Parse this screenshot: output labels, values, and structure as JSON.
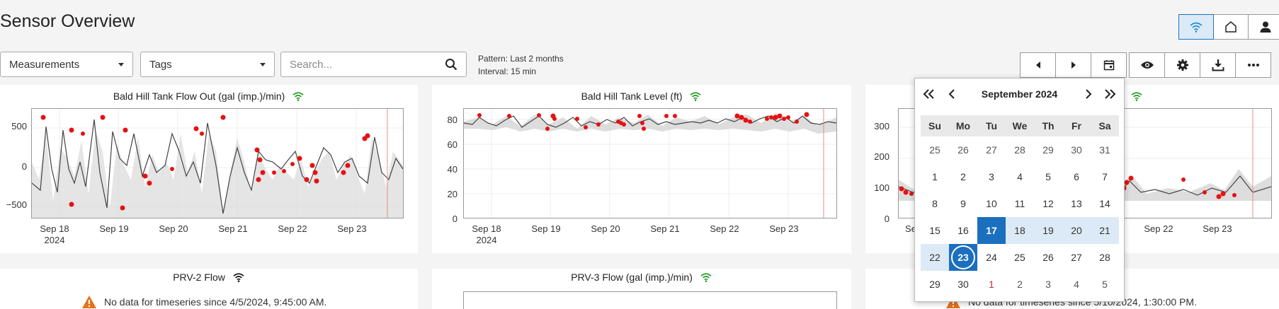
{
  "page_title": "Sensor Overview",
  "top_buttons": [
    {
      "name": "sensor",
      "icon": "wifi-icon",
      "active": true
    },
    {
      "name": "home",
      "icon": "home-icon",
      "active": false
    },
    {
      "name": "user",
      "icon": "user-icon",
      "active": false
    }
  ],
  "filters": {
    "measurements_label": "Measurements",
    "tags_label": "Tags",
    "search_placeholder": "Search..."
  },
  "pattern": {
    "pattern_text": "Pattern: Last 2 months",
    "interval_text": "Interval: 15 min"
  },
  "nav_buttons": [
    "chevron-left-icon",
    "chevron-right-icon",
    "calendar-icon"
  ],
  "tool_buttons": [
    "eye-icon",
    "gear-icon",
    "download-icon",
    "more-icon"
  ],
  "panels": [
    {
      "title": "Bald Hill Tank Flow Out (gal (imp.)/min)",
      "yticks": [
        "500",
        "0",
        "−500"
      ],
      "xticks": [
        {
          "l1": "Sep 18",
          "l2": "2024"
        },
        {
          "l1": "Sep 19",
          "l2": ""
        },
        {
          "l1": "Sep 20",
          "l2": ""
        },
        {
          "l1": "Sep 21",
          "l2": ""
        },
        {
          "l1": "Sep 22",
          "l2": ""
        },
        {
          "l1": "Sep 23",
          "l2": ""
        }
      ]
    },
    {
      "title": "Bald Hill Tank Level (ft)",
      "yticks": [
        "80",
        "60",
        "40",
        "20",
        "0"
      ],
      "xticks": [
        {
          "l1": "Sep 18",
          "l2": "2024"
        },
        {
          "l1": "Sep 19",
          "l2": ""
        },
        {
          "l1": "Sep 20",
          "l2": ""
        },
        {
          "l1": "Sep 21",
          "l2": ""
        },
        {
          "l1": "Sep 22",
          "l2": ""
        },
        {
          "l1": "Sep 23",
          "l2": ""
        }
      ]
    },
    {
      "title": "",
      "yticks": [
        "300",
        "200",
        "100",
        "0"
      ],
      "xticks": [
        {
          "l1": "Se",
          "l2": ""
        },
        {
          "l1": "Sep 22",
          "l2": ""
        },
        {
          "l1": "Sep 23",
          "l2": ""
        }
      ]
    }
  ],
  "bottom_panels": [
    {
      "title": "PRV-2 Flow",
      "warning": "No data for timeseries since 4/5/2024, 9:45:00 AM."
    },
    {
      "title": "PRV-3 Flow (gal (imp.)/min)",
      "warning": ""
    },
    {
      "title": "",
      "warning": "No data for timeseries since 5/10/2024, 1:30:00 PM."
    }
  ],
  "calendar": {
    "month_label": "September 2024",
    "weekdays": [
      "Su",
      "Mo",
      "Tu",
      "We",
      "Th",
      "Fr",
      "Sa"
    ],
    "weeks": [
      [
        "25",
        "26",
        "27",
        "28",
        "29",
        "30",
        "31"
      ],
      [
        "1",
        "2",
        "3",
        "4",
        "5",
        "6",
        "7"
      ],
      [
        "8",
        "9",
        "10",
        "11",
        "12",
        "13",
        "14"
      ],
      [
        "15",
        "16",
        "17",
        "18",
        "19",
        "20",
        "21"
      ],
      [
        "22",
        "23",
        "24",
        "25",
        "26",
        "27",
        "28"
      ],
      [
        "29",
        "30",
        "1",
        "2",
        "3",
        "4",
        "5"
      ]
    ],
    "range_start": "17",
    "range_end": "23"
  },
  "colors": {
    "accent": "#1a6fbf",
    "signal_green": "#2e9e2e",
    "anomaly_red": "#e81010",
    "warning_orange": "#e8711a"
  }
}
